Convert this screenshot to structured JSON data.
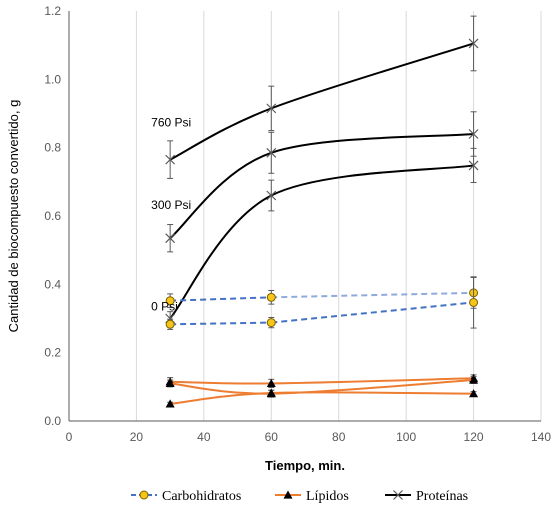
{
  "chart_data": {
    "type": "line",
    "xlabel": "Tiempo, min.",
    "ylabel": "Cantidad de biocompuesto convertido, g",
    "xlim": [
      0,
      140
    ],
    "ylim": [
      0,
      1.2
    ],
    "x_ticks": [
      0,
      20,
      40,
      60,
      80,
      100,
      120,
      140
    ],
    "y_ticks": [
      "0.0",
      "0.2",
      "0.4",
      "0.6",
      "0.8",
      "1.0",
      "1.2"
    ],
    "grid": "vertical",
    "legend_position": "bottom",
    "colors": {
      "proteinas": "#000000",
      "carbohidratos_line": "#4472C4",
      "carbohidratos_line_light": "#8FAADC",
      "carbohidratos_marker": "#F5C518",
      "lipidos_line": "#ED7D31",
      "lipidos_marker": "#000000",
      "error_bars": "#595959",
      "grid": "#D9D9D9"
    },
    "series": [
      {
        "group": "Proteinas",
        "label": "760 Psi",
        "x": [
          30,
          60,
          120
        ],
        "y": [
          0.765,
          0.915,
          1.105
        ],
        "err": [
          0.055,
          0.065,
          0.08
        ]
      },
      {
        "group": "Proteinas",
        "label": "300 Psi",
        "x": [
          30,
          60,
          120
        ],
        "y": [
          0.535,
          0.785,
          0.84
        ],
        "err": [
          0.04,
          0.06,
          0.065
        ]
      },
      {
        "group": "Proteinas",
        "label": "0 Psi",
        "x": [
          30,
          60,
          120
        ],
        "y": [
          0.3,
          0.66,
          0.748
        ],
        "err": [
          0.02,
          0.045,
          0.05
        ]
      },
      {
        "group": "Carbohidratos",
        "x": [
          30,
          60,
          120
        ],
        "y": [
          0.352,
          0.362,
          0.375
        ],
        "err": [
          0.02,
          0.02,
          0.045
        ]
      },
      {
        "group": "Carbohidratos",
        "x": [
          30,
          60,
          120
        ],
        "y": [
          0.283,
          0.288,
          0.347
        ],
        "err": [
          0.015,
          0.015,
          0.075
        ]
      },
      {
        "group": "Lipidos",
        "x": [
          30,
          60,
          120
        ],
        "y": [
          0.115,
          0.11,
          0.125
        ],
        "err": [
          0.012,
          0.012,
          0.01
        ]
      },
      {
        "group": "Lipidos",
        "x": [
          30,
          60,
          120
        ],
        "y": [
          0.11,
          0.08,
          0.12
        ],
        "err": [
          0.01,
          0.01,
          0.01
        ]
      },
      {
        "group": "Lipidos",
        "x": [
          30,
          60,
          120
        ],
        "y": [
          0.05,
          0.082,
          0.08
        ],
        "err": [
          0.005,
          0.008,
          0.006
        ]
      }
    ],
    "legend": [
      {
        "label": "Carbohidratos",
        "marker": "circle"
      },
      {
        "label": "Lípidos",
        "marker": "triangle"
      },
      {
        "label": "Proteínas",
        "marker": "x"
      }
    ]
  }
}
